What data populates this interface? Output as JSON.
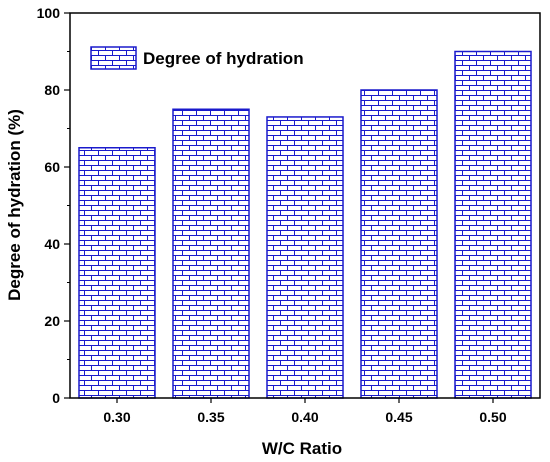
{
  "chart_data": {
    "type": "bar",
    "categories": [
      "0.30",
      "0.35",
      "0.40",
      "0.45",
      "0.50"
    ],
    "series": [
      {
        "name": "Degree of hydration",
        "values": [
          65,
          75,
          73,
          80,
          90
        ]
      }
    ],
    "xlabel": "W/C Ratio",
    "ylabel": "Degree of hydration (%)",
    "ylim": [
      0,
      100
    ],
    "yticks": [
      "0",
      "20",
      "40",
      "60",
      "80",
      "100"
    ],
    "grid": false,
    "legend_position": "top-left",
    "bar_pattern": "brick",
    "colors": {
      "bar_stroke": "#1a1acc",
      "bar_fill": "#ffffff",
      "axis": "#000000"
    }
  }
}
